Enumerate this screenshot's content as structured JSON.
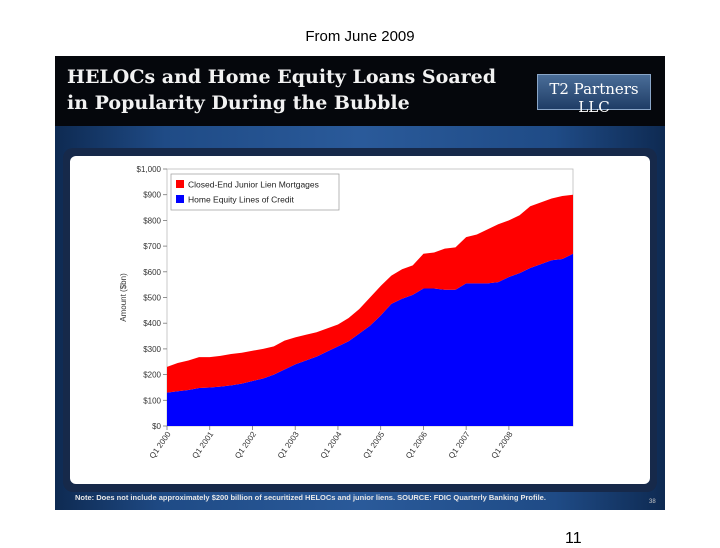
{
  "caption": "From June 2009",
  "slide": {
    "title_line1": "HELOCs and Home Equity Loans Soared",
    "title_line2": "in Popularity During the Bubble",
    "logo": "T2 Partners LLC",
    "note": "Note: Does not include approximately $200 billion of securitized HELOCs and junior liens. SOURCE: FDIC Quarterly Banking Profile.",
    "slide_number": "38"
  },
  "page_number": "11",
  "colors": {
    "red": "#ff0000",
    "blue": "#0000ff"
  },
  "chart_data": {
    "type": "area",
    "stacked": true,
    "ylabel": "Amount ($bn)",
    "ylim": [
      0,
      1000
    ],
    "y_ticks": [
      "$0",
      "$100",
      "$200",
      "$300",
      "$400",
      "$500",
      "$600",
      "$700",
      "$800",
      "$900",
      "$1,000"
    ],
    "x_ticks": [
      "Q1 2000",
      "Q1 2001",
      "Q1 2002",
      "Q1 2003",
      "Q1 2004",
      "Q1 2005",
      "Q1 2006",
      "Q1 2007",
      "Q1 2008"
    ],
    "x_tick_indices": [
      0,
      4,
      8,
      12,
      16,
      20,
      24,
      28,
      32
    ],
    "legend_position": "top-left",
    "series": [
      {
        "name": "Home Equity Lines of Credit",
        "color": "#0000ff",
        "values": [
          130,
          135,
          140,
          148,
          150,
          153,
          158,
          165,
          175,
          185,
          200,
          220,
          240,
          255,
          270,
          290,
          310,
          330,
          360,
          390,
          430,
          475,
          495,
          510,
          535,
          535,
          530,
          530,
          555,
          555,
          555,
          560,
          580,
          595,
          615,
          630,
          645,
          650,
          670
        ]
      },
      {
        "name": "Closed-End Junior Lien Mortgages",
        "color": "#ff0000",
        "values": [
          100,
          110,
          115,
          120,
          118,
          120,
          122,
          120,
          118,
          115,
          110,
          112,
          105,
          100,
          95,
          90,
          85,
          90,
          95,
          110,
          115,
          110,
          115,
          115,
          135,
          140,
          160,
          165,
          180,
          190,
          210,
          225,
          220,
          225,
          240,
          240,
          240,
          245,
          230
        ]
      }
    ]
  }
}
